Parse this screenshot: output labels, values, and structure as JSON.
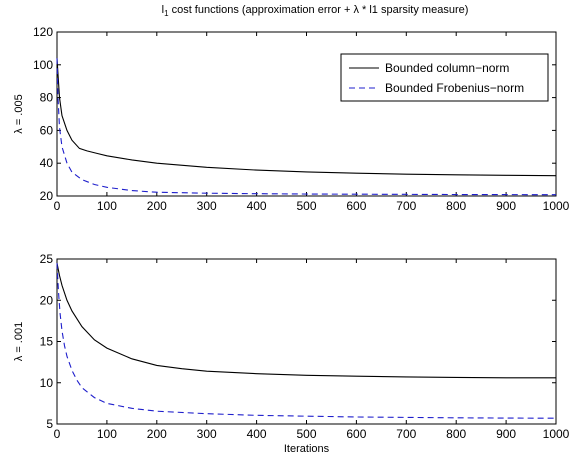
{
  "figure": {
    "title_main": "l",
    "title_sub": "1",
    "title_rest": " cost functions (approximation error + λ * l1 sparsity measure)"
  },
  "chart_data": [
    {
      "type": "line",
      "title": "l1 cost functions (approximation error + λ * l1 sparsity measure)",
      "xlabel": "",
      "ylabel": "λ = .005",
      "xlim": [
        0,
        1000
      ],
      "ylim": [
        20,
        120
      ],
      "xticks": [
        "0",
        "100",
        "200",
        "300",
        "400",
        "500",
        "600",
        "700",
        "800",
        "900",
        "1000"
      ],
      "yticks": [
        "20",
        "40",
        "60",
        "80",
        "100",
        "120"
      ],
      "grid": false,
      "legend": "top-right",
      "series": [
        {
          "name": "Bounded column−norm",
          "color": "#000000",
          "style": "solid",
          "x": [
            0,
            5,
            10,
            20,
            30,
            45,
            60,
            80,
            100,
            150,
            200,
            300,
            400,
            500,
            600,
            700,
            800,
            900,
            1000
          ],
          "y": [
            104,
            80,
            69,
            60,
            54,
            49,
            47.5,
            46,
            44.5,
            42,
            40,
            37.5,
            35.8,
            34.7,
            33.9,
            33.3,
            32.9,
            32.6,
            32.4
          ]
        },
        {
          "name": "Bounded Frobenius−norm",
          "color": "#1f1fcc",
          "style": "dashed",
          "x": [
            0,
            2,
            5,
            10,
            20,
            30,
            50,
            75,
            100,
            150,
            200,
            300,
            400,
            500,
            600,
            700,
            800,
            900,
            1000
          ],
          "y": [
            104,
            80,
            62,
            50,
            40,
            34.5,
            30,
            27,
            25.3,
            23.3,
            22.3,
            21.7,
            21.4,
            21.2,
            21.1,
            21,
            20.9,
            20.85,
            20.8
          ]
        }
      ]
    },
    {
      "type": "line",
      "title": "",
      "xlabel": "Iterations",
      "ylabel": "λ = .001",
      "xlim": [
        0,
        1000
      ],
      "ylim": [
        5,
        25
      ],
      "xticks": [
        "0",
        "100",
        "200",
        "300",
        "400",
        "500",
        "600",
        "700",
        "800",
        "900",
        "1000"
      ],
      "yticks": [
        "5",
        "10",
        "15",
        "20",
        "25"
      ],
      "grid": false,
      "legend": "none",
      "series": [
        {
          "color": "#000000",
          "style": "solid",
          "x": [
            0,
            5,
            10,
            20,
            30,
            50,
            75,
            100,
            150,
            200,
            250,
            300,
            400,
            500,
            600,
            700,
            800,
            900,
            1000
          ],
          "y": [
            24.5,
            23,
            21.8,
            20,
            18.7,
            16.8,
            15.2,
            14.2,
            12.9,
            12.1,
            11.7,
            11.4,
            11.1,
            10.9,
            10.8,
            10.7,
            10.65,
            10.6,
            10.6
          ]
        },
        {
          "color": "#1f1fcc",
          "style": "dashed",
          "x": [
            0,
            3,
            6,
            10,
            15,
            20,
            30,
            40,
            50,
            75,
            100,
            150,
            200,
            300,
            400,
            500,
            600,
            700,
            800,
            900,
            1000
          ],
          "y": [
            24.5,
            21,
            18.5,
            16.3,
            14.5,
            13.2,
            11.5,
            10.3,
            9.4,
            8.2,
            7.5,
            6.9,
            6.55,
            6.25,
            6.05,
            5.95,
            5.85,
            5.8,
            5.75,
            5.72,
            5.7
          ]
        }
      ]
    }
  ]
}
